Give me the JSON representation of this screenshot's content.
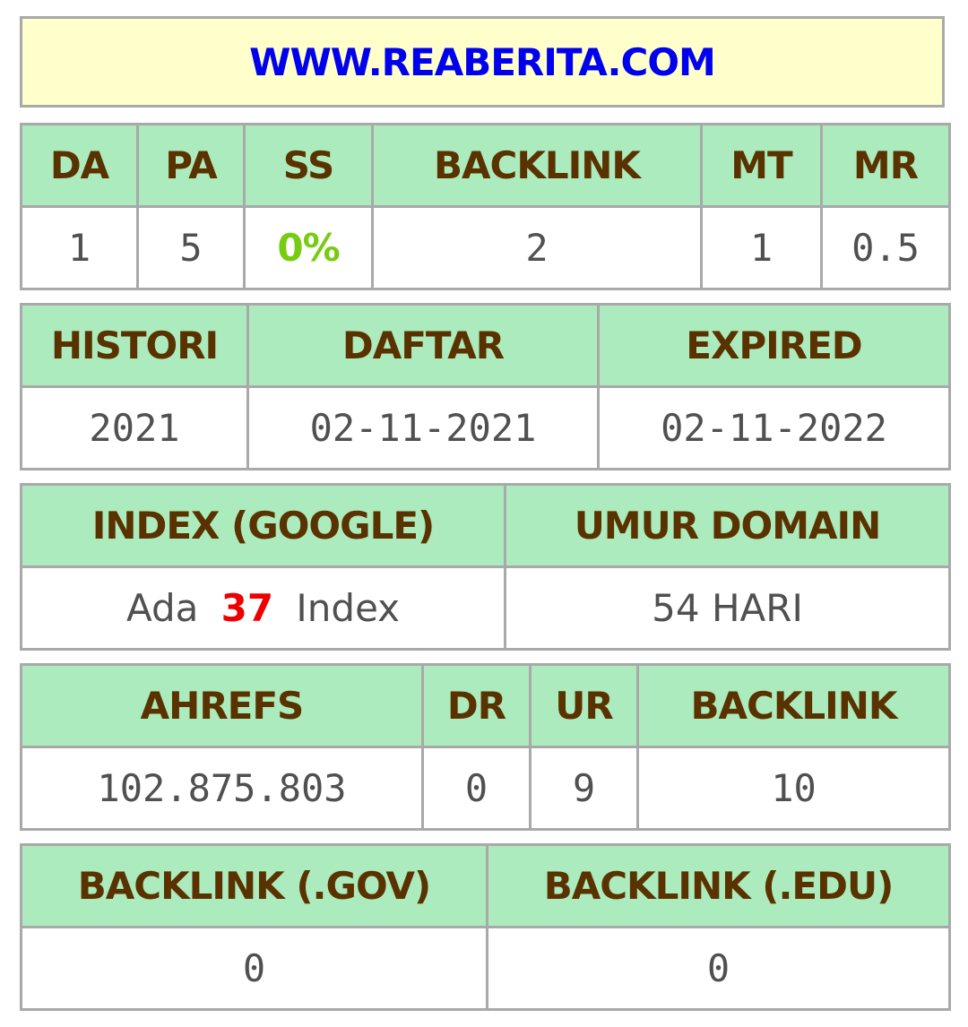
{
  "header": {
    "domain": "WWW.REABERITA.COM"
  },
  "metrics": {
    "headers": [
      "DA",
      "PA",
      "SS",
      "BACKLINK",
      "MT",
      "MR"
    ],
    "values": [
      "1",
      "5",
      "0%",
      "2",
      "1",
      "0.5"
    ]
  },
  "dates": {
    "headers": [
      "HISTORI",
      "DAFTAR",
      "EXPIRED"
    ],
    "values": [
      "2021",
      "02-11-2021",
      "02-11-2022"
    ]
  },
  "index": {
    "headers": [
      "INDEX (GOOGLE)",
      "UMUR DOMAIN"
    ],
    "index_prefix": "Ada",
    "index_count": "37",
    "index_suffix": "Index",
    "domain_age": "54 HARI"
  },
  "ahrefs": {
    "headers": [
      "AHREFS",
      "DR",
      "UR",
      "BACKLINK"
    ],
    "values": [
      "102.875.803",
      "0",
      "9",
      "10"
    ]
  },
  "backlinks": {
    "headers": [
      "BACKLINK (.GOV)",
      "BACKLINK (.EDU)"
    ],
    "values": [
      "0",
      "0"
    ]
  },
  "colors": {
    "header_bg": "#ffffcc",
    "link": "#0000ee",
    "table_header_bg": "#acebbd",
    "table_header_text": "#5a3200",
    "cell_text": "#505050",
    "ss_value": "#77cc11",
    "index_count": "#ee0000",
    "border": "#a9a9a9"
  }
}
